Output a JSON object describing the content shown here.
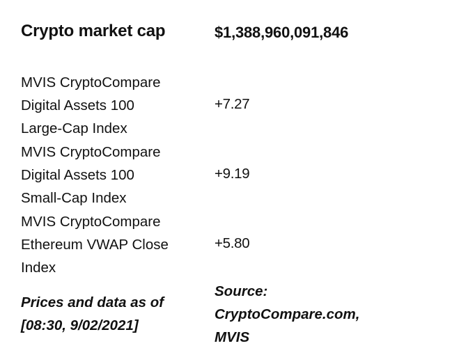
{
  "header": {
    "label": "Crypto market cap",
    "value": "$1,388,960,091,846"
  },
  "indices": [
    {
      "name_lines": [
        "MVIS CryptoCompare",
        "Digital Assets 100",
        "Large-Cap Index"
      ],
      "value": "+7.27"
    },
    {
      "name_lines": [
        "MVIS CryptoCompare",
        "Digital Assets 100",
        "Small-Cap Index"
      ],
      "value": "+9.19"
    },
    {
      "name_lines": [
        "MVIS CryptoCompare",
        "Ethereum VWAP Close",
        "Index"
      ],
      "value": "+5.80"
    }
  ],
  "footer": {
    "timestamp_lines": [
      "Prices and data as of",
      "[08:30, 9/02/2021]"
    ],
    "source_lines": [
      "Source:",
      "CryptoCompare.com,",
      "MVIS"
    ]
  }
}
